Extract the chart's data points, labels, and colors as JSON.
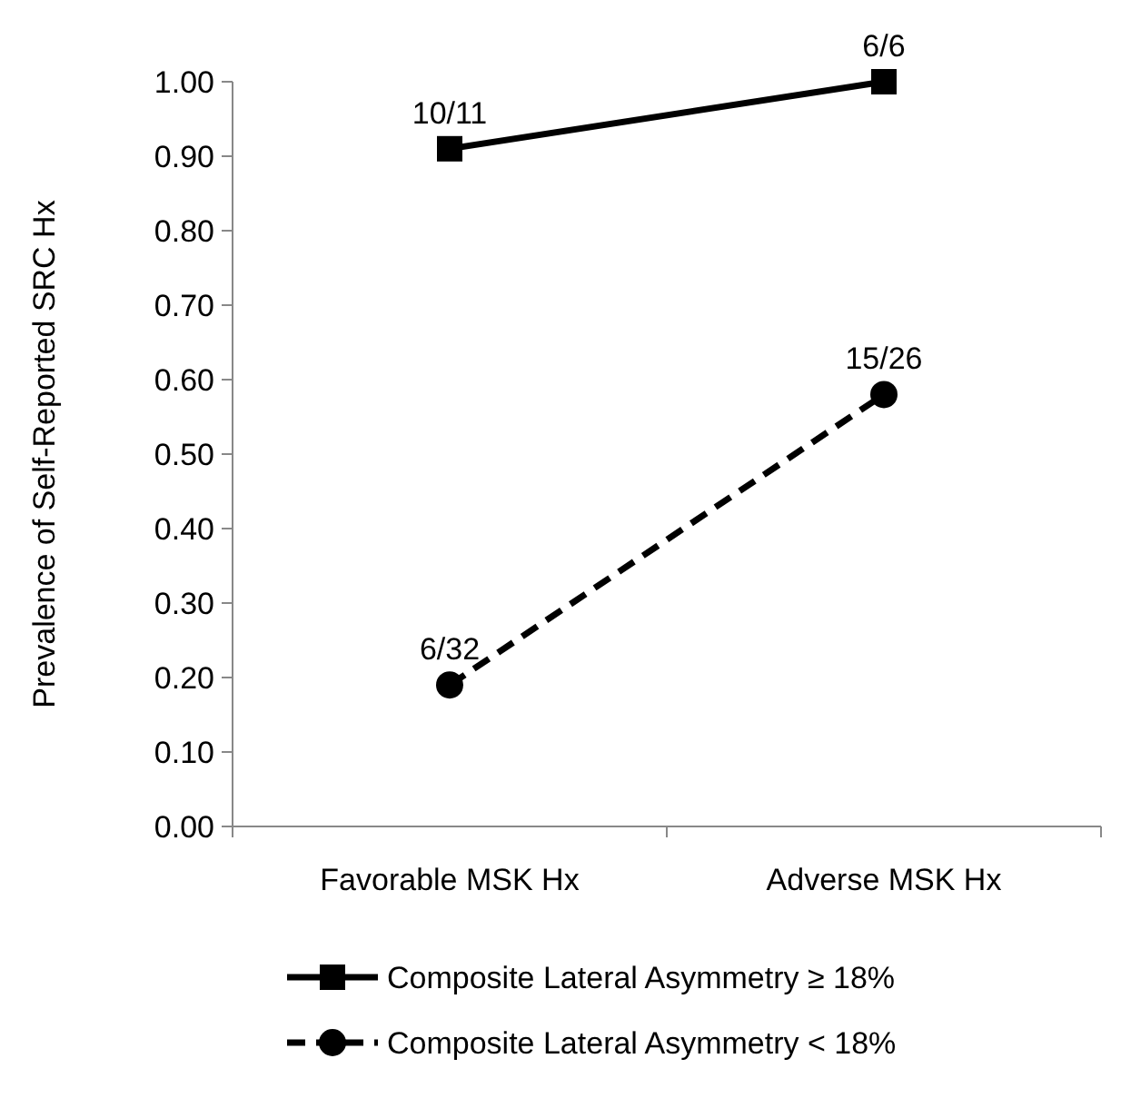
{
  "chart_data": {
    "type": "line",
    "ylabel": "Prevalence of Self-Reported SRC Hx",
    "categories": [
      "Favorable MSK Hx",
      "Adverse MSK Hx"
    ],
    "series": [
      {
        "name": "Composite Lateral Asymmetry ≥ 18%",
        "color": "#000000",
        "values": [
          0.91,
          1.0
        ],
        "marker": "square",
        "line_style": "solid",
        "value_labels": [
          "10/11",
          "6/6"
        ]
      },
      {
        "name": "Composite Lateral Asymmetry < 18%",
        "color": "#000000",
        "values": [
          0.19,
          0.58
        ],
        "marker": "circle",
        "line_style": "dashed",
        "value_labels": [
          "6/32",
          "15/26"
        ]
      }
    ],
    "ylim": [
      0,
      1
    ],
    "yticks": [
      {
        "value": 0,
        "label": "0.00"
      },
      {
        "value": 0.1,
        "label": "0.10"
      },
      {
        "value": 0.2,
        "label": "0.20"
      },
      {
        "value": 0.3,
        "label": "0.30"
      },
      {
        "value": 0.4,
        "label": "0.40"
      },
      {
        "value": 0.5,
        "label": "0.50"
      },
      {
        "value": 0.6,
        "label": "0.60"
      },
      {
        "value": 0.7,
        "label": "0.70"
      },
      {
        "value": 0.8,
        "label": "0.80"
      },
      {
        "value": 0.9,
        "label": "0.90"
      },
      {
        "value": 1,
        "label": "1.00"
      }
    ],
    "grid": false,
    "legend": "bottom"
  }
}
